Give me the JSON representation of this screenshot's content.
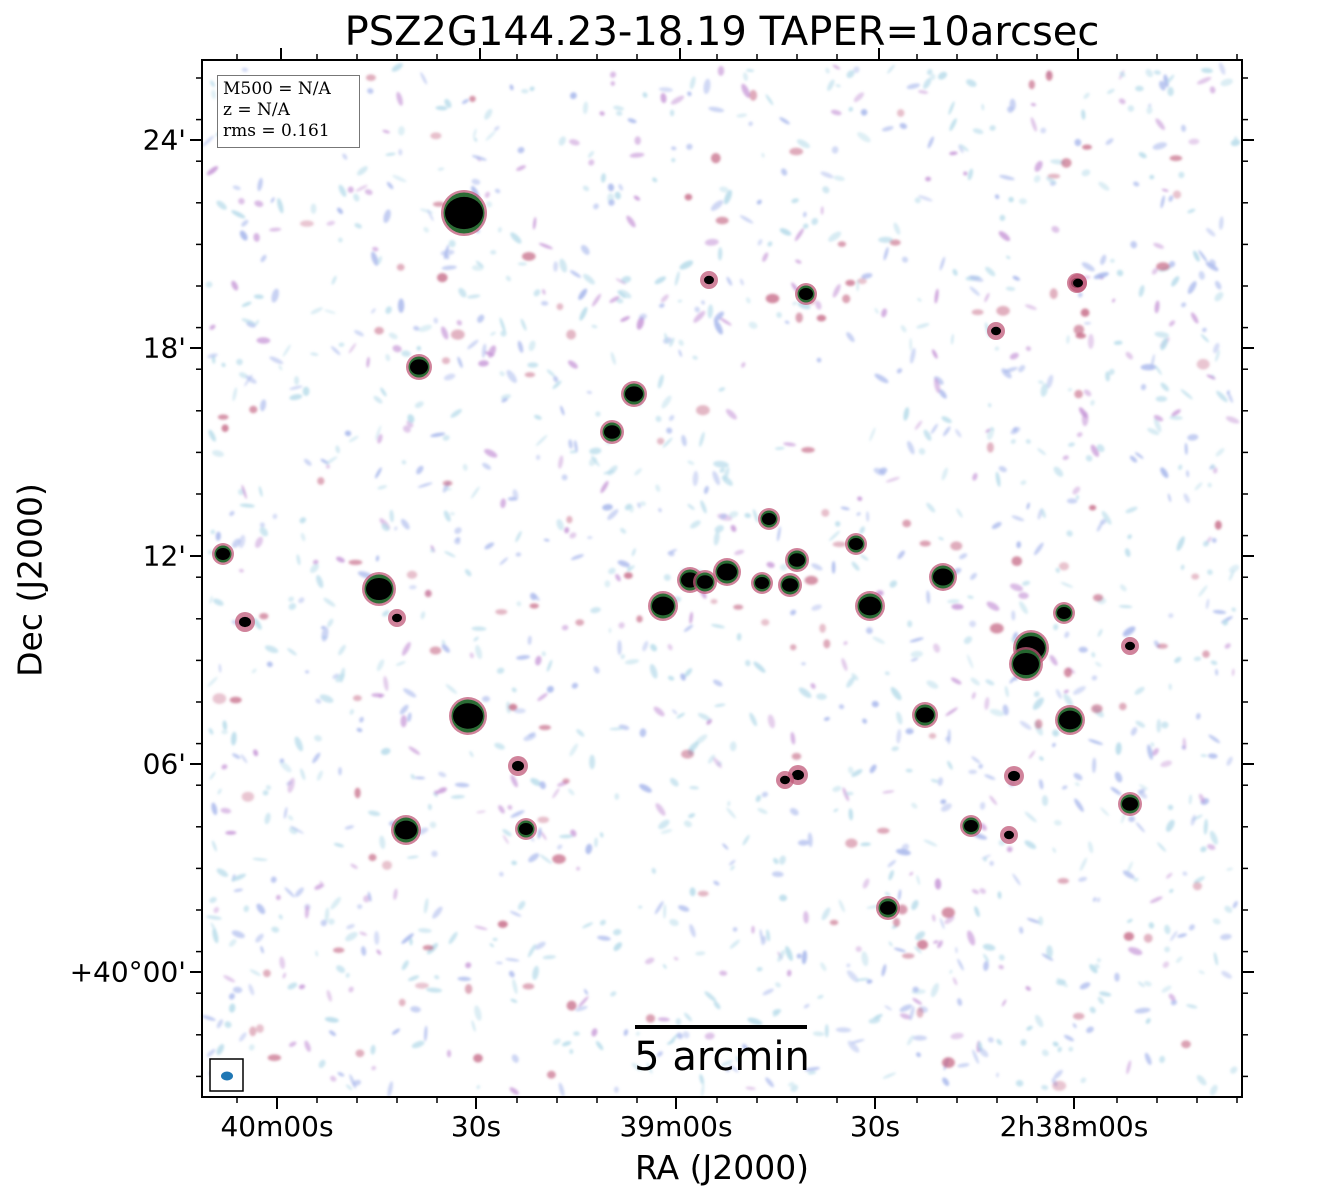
{
  "title": "PSZ2G144.23-18.19 TAPER=10arcsec",
  "axes": {
    "xlabel": "RA (J2000)",
    "ylabel": "Dec (J2000)",
    "x_ticks": [
      "40m00s",
      "30s",
      "39m00s",
      "30s",
      "2h38m00s"
    ],
    "y_ticks": [
      "24'",
      "18'",
      "12'",
      "06'",
      "+40°00'"
    ]
  },
  "info": {
    "m500": "M500 = N/A",
    "z": "z = N/A",
    "rms": "rms = 0.161"
  },
  "scale_bar": {
    "label": "5 arcmin"
  },
  "colors": {
    "background": "#ffffff",
    "noise_light": "#b8dcea",
    "noise_mid": "#a9b8ec",
    "noise_purple": "#c89ad8",
    "source_halo": "#c05a7a",
    "source_core": "#1a6a2a",
    "source_peak": "#000000",
    "beam": "#1f77b4"
  }
}
